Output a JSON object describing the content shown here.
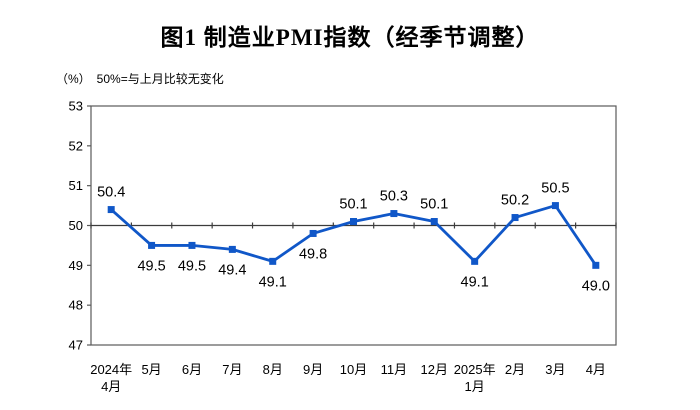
{
  "title": "图1  制造业PMI指数（经季节调整）",
  "subtitle": {
    "unit": "（%）",
    "note": "50%=与上月比较无变化"
  },
  "chart_data": {
    "type": "line",
    "title": "图1  制造业PMI指数（经季节调整）",
    "unit_label": "（%）",
    "annotation": "50%=与上月比较无变化",
    "categories": [
      [
        "2024年",
        "4月"
      ],
      [
        "5月"
      ],
      [
        "6月"
      ],
      [
        "7月"
      ],
      [
        "8月"
      ],
      [
        "9月"
      ],
      [
        "10月"
      ],
      [
        "11月"
      ],
      [
        "12月"
      ],
      [
        "2025年",
        "1月"
      ],
      [
        "2月"
      ],
      [
        "3月"
      ],
      [
        "4月"
      ]
    ],
    "series": [
      {
        "name": "制造业PMI指数",
        "values": [
          50.4,
          49.5,
          49.5,
          49.4,
          49.1,
          49.8,
          50.1,
          50.3,
          50.1,
          49.1,
          50.2,
          50.5,
          49.0
        ]
      }
    ],
    "point_labels": [
      "50.4",
      "49.5",
      "49.5",
      "49.4",
      "49.1",
      "49.8",
      "50.1",
      "50.3",
      "50.1",
      "49.1",
      "50.2",
      "50.5",
      "49.0"
    ],
    "label_positions": [
      "above",
      "below",
      "below",
      "below",
      "below",
      "below",
      "above",
      "above",
      "above",
      "below",
      "above",
      "above",
      "below"
    ],
    "ylim": [
      47,
      53
    ],
    "yticks": [
      47,
      48,
      49,
      50,
      51,
      52,
      53
    ],
    "axis_cross": 50,
    "grid": false,
    "legend": "none",
    "colors": {
      "line": "#1057C8",
      "marker": "#1057C8",
      "frame": "#595959",
      "reference_line": "#3c3c3c",
      "text": "#000000"
    }
  }
}
